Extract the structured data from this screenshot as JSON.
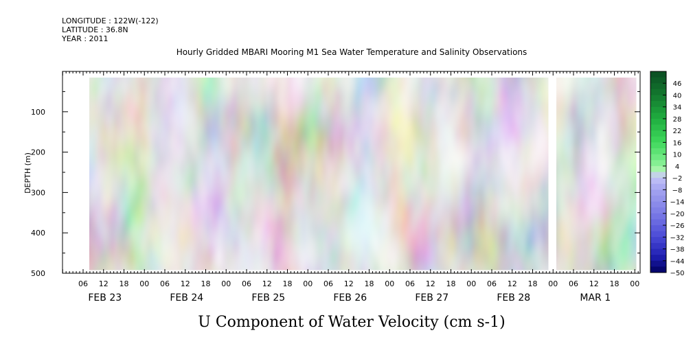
{
  "header": {
    "longitude": "LONGITUDE : 122W(-122)",
    "latitude": "LATITUDE : 36.8N",
    "year": "YEAR : 2011"
  },
  "chart_data": {
    "type": "heatmap",
    "title": "Hourly Gridded MBARI Mooring M1 Sea Water Temperature and Salinity Observations",
    "xlabel": "U Component of Water Velocity (cm s-1)",
    "ylabel": "DEPTH (m)",
    "x_hour_ticks": [
      "06",
      "12",
      "18",
      "00",
      "06",
      "12",
      "18",
      "00",
      "06",
      "12",
      "18",
      "00",
      "06",
      "12",
      "18",
      "00",
      "06",
      "12",
      "18",
      "00",
      "06",
      "12",
      "18",
      "00",
      "06",
      "12",
      "18",
      "00"
    ],
    "x_date_labels": [
      "FEB 23",
      "FEB 24",
      "FEB 25",
      "FEB 26",
      "FEB 27",
      "FEB 28",
      "MAR  1"
    ],
    "y_ticks": [
      100,
      200,
      300,
      400,
      500
    ],
    "ylim": [
      500,
      0
    ],
    "y_inverted": true,
    "colorbar_ticks": [
      46,
      40,
      34,
      28,
      22,
      16,
      10,
      4,
      -2,
      -8,
      -14,
      -20,
      -26,
      -32,
      -38,
      -44,
      -50
    ],
    "colorbar_range": [
      -50,
      52
    ],
    "colors": {
      "strong_positive": "#0e5a2a",
      "positive": "#3fdc5e",
      "weak_positive": "#8ef09a",
      "weak_negative": "#a9a9f2",
      "negative": "#7878e6",
      "strong_negative": "#00005e"
    }
  }
}
